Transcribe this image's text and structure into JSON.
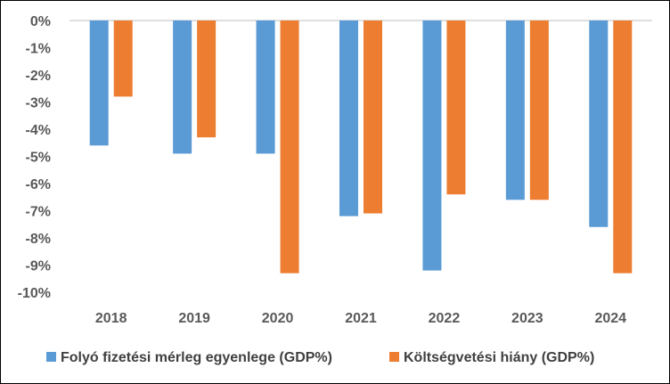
{
  "chart_data": {
    "type": "bar",
    "title": "",
    "xlabel": "",
    "ylabel": "",
    "categories": [
      "2018",
      "2019",
      "2020",
      "2021",
      "2022",
      "2023",
      "2024"
    ],
    "ylim": [
      -10,
      0
    ],
    "yticks": [
      0,
      -1,
      -2,
      -3,
      -4,
      -5,
      -6,
      -7,
      -8,
      -9,
      -10
    ],
    "ytick_labels": [
      "0%",
      "-1%",
      "-2%",
      "-3%",
      "-4%",
      "-5%",
      "-6%",
      "-7%",
      "-8%",
      "-9%",
      "-10%"
    ],
    "grid": false,
    "legend_position": "bottom",
    "series": [
      {
        "name": "Folyó fizetési mérleg egyenlege (GDP%)",
        "color": "#5B9BD5",
        "values": [
          -4.6,
          -4.9,
          -4.9,
          -7.2,
          -9.2,
          -6.6,
          -7.6
        ]
      },
      {
        "name": "Költségvetési hiány (GDP%)",
        "color": "#ED7D31",
        "values": [
          -2.8,
          -4.3,
          -9.3,
          -7.1,
          -6.4,
          -6.6,
          -9.3
        ]
      }
    ]
  }
}
